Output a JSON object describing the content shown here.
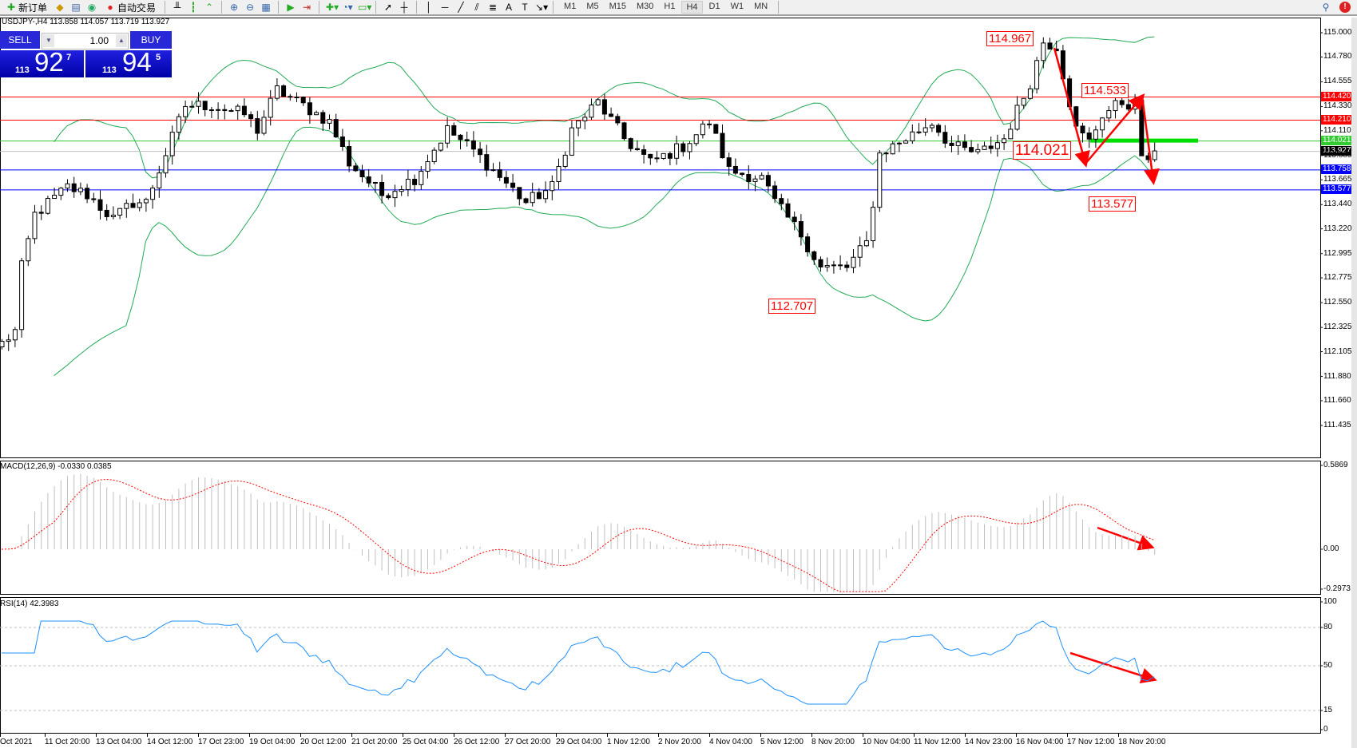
{
  "toolbar": {
    "new_order_label": "新订单",
    "auto_trade_label": "自动交易",
    "timeframes": [
      "M1",
      "M5",
      "M15",
      "M30",
      "H1",
      "H4",
      "D1",
      "W1",
      "MN"
    ],
    "active_timeframe": "H4",
    "notification_count": "!"
  },
  "chart": {
    "title": "USDJPY-,H4  113.858 114.057 113.719 113.927",
    "symbol": "USDJPY-",
    "timeframe": "H4"
  },
  "trade_panel": {
    "sell_label": "SELL",
    "buy_label": "BUY",
    "lot": "1.00",
    "sell_price": {
      "prefix": "113",
      "big": "92",
      "sup": "7"
    },
    "buy_price": {
      "prefix": "113",
      "big": "94",
      "sup": "5"
    }
  },
  "price_axis": {
    "ticks": [
      "115.000",
      "114.780",
      "114.555",
      "114.330",
      "114.110",
      "113.885",
      "113.665",
      "113.440",
      "113.220",
      "112.995",
      "112.775",
      "112.550",
      "112.325",
      "112.105",
      "111.880",
      "111.660",
      "111.435"
    ],
    "range": [
      111.435,
      115.0
    ]
  },
  "levels": [
    {
      "price": 114.42,
      "label": "114.420",
      "color": "#ff0000"
    },
    {
      "price": 114.21,
      "label": "114.210",
      "color": "#ff0000"
    },
    {
      "price": 114.021,
      "label": "114.021",
      "color": "#33cc33"
    },
    {
      "price": 113.927,
      "label": "113.927",
      "color": "#000000"
    },
    {
      "price": 113.758,
      "label": "113.758",
      "color": "#0000ff"
    },
    {
      "price": 113.577,
      "label": "113.577",
      "color": "#0000ff"
    }
  ],
  "annotations": [
    "114.967",
    "114.533",
    "114.021",
    "113.577",
    "112.707"
  ],
  "close_waypoints": [
    [
      0,
      112.18
    ],
    [
      2,
      112.29
    ],
    [
      3,
      112.87
    ],
    [
      5,
      113.35
    ],
    [
      10,
      113.6
    ],
    [
      13,
      113.53
    ],
    [
      17,
      113.31
    ],
    [
      20,
      113.46
    ],
    [
      22,
      113.46
    ],
    [
      25,
      113.9
    ],
    [
      28,
      114.34
    ],
    [
      32,
      114.34
    ],
    [
      37,
      114.26
    ],
    [
      39,
      114.12
    ],
    [
      42,
      114.48
    ],
    [
      46,
      114.34
    ],
    [
      50,
      114.19
    ],
    [
      53,
      113.82
    ],
    [
      58,
      113.53
    ],
    [
      63,
      113.68
    ],
    [
      68,
      114.12
    ],
    [
      72,
      113.93
    ],
    [
      75,
      113.75
    ],
    [
      80,
      113.46
    ],
    [
      84,
      113.6
    ],
    [
      87,
      114.12
    ],
    [
      91,
      114.37
    ],
    [
      95,
      114.04
    ],
    [
      99,
      113.82
    ],
    [
      104,
      113.97
    ],
    [
      108,
      114.19
    ],
    [
      111,
      113.75
    ],
    [
      116,
      113.68
    ],
    [
      118,
      113.46
    ],
    [
      122,
      113.17
    ],
    [
      125,
      112.87
    ],
    [
      129,
      112.87
    ],
    [
      132,
      113.09
    ],
    [
      133,
      113.46
    ],
    [
      134,
      113.9
    ],
    [
      138,
      114.04
    ],
    [
      142,
      114.19
    ],
    [
      145,
      113.97
    ],
    [
      149,
      113.9
    ],
    [
      153,
      114.04
    ],
    [
      157,
      114.55
    ],
    [
      159,
      114.92
    ],
    [
      161,
      114.88
    ],
    [
      164,
      114.12
    ],
    [
      166,
      114.01
    ],
    [
      168,
      114.26
    ],
    [
      171,
      114.37
    ],
    [
      173,
      114.34
    ],
    [
      174,
      113.9
    ],
    [
      175,
      113.79
    ],
    [
      176,
      113.927
    ]
  ],
  "macd": {
    "label": "MACD(12,26,9) -0.0330 0.0385",
    "ticks": [
      "0.5869",
      "0.00",
      "-0.2973"
    ],
    "range": [
      -0.2973,
      0.5869
    ]
  },
  "rsi": {
    "label": "RSI(14) 42.3983",
    "ticks": [
      "100",
      "80",
      "50",
      "15",
      "0"
    ],
    "levels": [
      80,
      50,
      15
    ]
  },
  "time_axis": [
    "Oct 2021",
    "11 Oct 20:00",
    "13 Oct 04:00",
    "14 Oct 12:00",
    "17 Oct 23:00",
    "19 Oct 04:00",
    "20 Oct 12:00",
    "21 Oct 20:00",
    "25 Oct 04:00",
    "26 Oct 12:00",
    "27 Oct 20:00",
    "29 Oct 04:00",
    "1 Nov 12:00",
    "2 Nov 20:00",
    "4 Nov 04:00",
    "5 Nov 12:00",
    "8 Nov 20:00",
    "10 Nov 04:00",
    "11 Nov 12:00",
    "14 Nov 23:00",
    "16 Nov 04:00",
    "17 Nov 12:00",
    "18 Nov 20:00"
  ],
  "colors": {
    "bull": "#ffffff",
    "bear": "#000000",
    "bands": "#22aa55",
    "arrow": "#ff0000",
    "rsi_line": "#1e90ff",
    "macd_hist": "#c0c0c0",
    "macd_signal": "#ff0000"
  }
}
